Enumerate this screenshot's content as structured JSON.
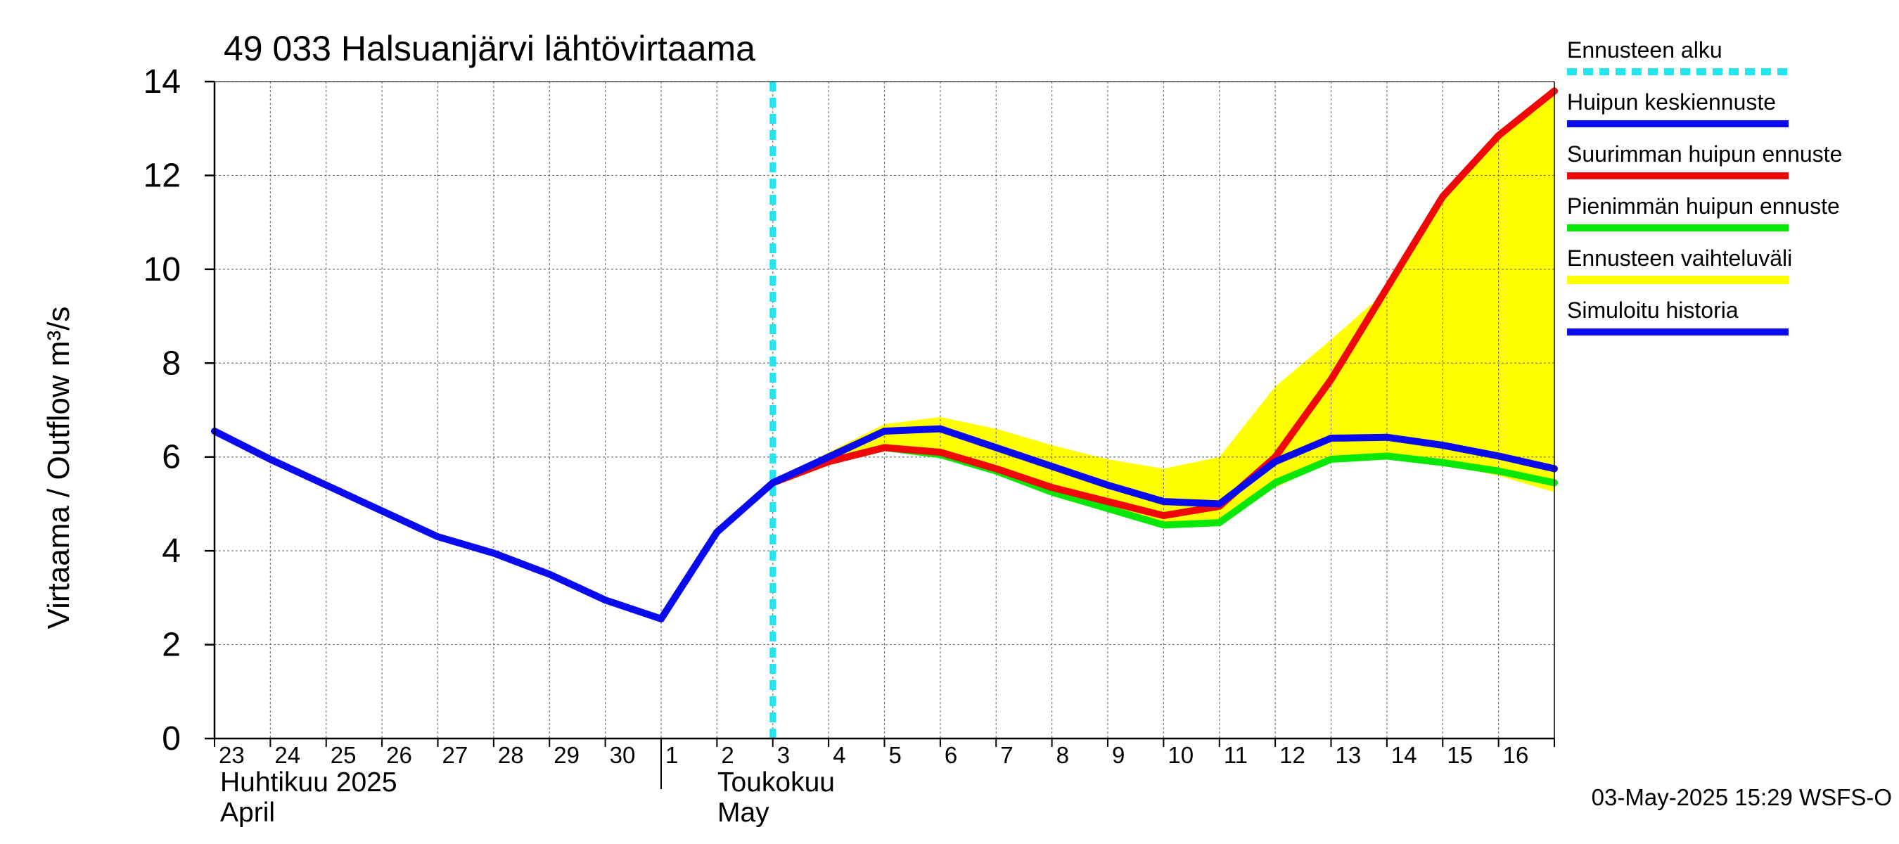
{
  "chart_data": {
    "type": "line",
    "title": "49 033 Halsuanjärvi lähtövirtaama",
    "ylabel": "Virtaama / Outflow    m³/s",
    "ylim": [
      0,
      14
    ],
    "y_ticks": [
      0,
      2,
      4,
      6,
      8,
      10,
      12,
      14
    ],
    "x_domain": [
      "2025-04-23",
      "2025-05-17"
    ],
    "x_tick_labels": [
      "23",
      "24",
      "25",
      "26",
      "27",
      "28",
      "29",
      "30",
      "1",
      "2",
      "3",
      "4",
      "5",
      "6",
      "7",
      "8",
      "9",
      "10",
      "11",
      "12",
      "13",
      "14",
      "15",
      "16"
    ],
    "month_labels": [
      {
        "fi": "Huhtikuu  2025",
        "en": "April"
      },
      {
        "fi": "Toukokuu",
        "en": "May"
      }
    ],
    "forecast_start": "2025-05-03",
    "grid": true,
    "legend_position": "right",
    "legend": [
      {
        "label": "Ennusteen alku",
        "color": "#22e5ee",
        "style": "dashed"
      },
      {
        "label": "Huipun keskiennuste",
        "color": "#0a0aee",
        "style": "solid"
      },
      {
        "label": "Suurimman huipun ennuste",
        "color": "#f00808",
        "style": "solid"
      },
      {
        "label": "Pienimmän huipun ennuste",
        "color": "#08e808",
        "style": "solid"
      },
      {
        "label": "Ennusteen vaihteluväli",
        "color": "#ffff00",
        "style": "band"
      },
      {
        "label": "Simuloitu historia",
        "color": "#0a0aee",
        "style": "solid"
      }
    ],
    "series": [
      {
        "name": "Ennusteen vaihteluväli",
        "kind": "band",
        "color": "#ffff00",
        "x": [
          "2025-05-03",
          "2025-05-04",
          "2025-05-05",
          "2025-05-06",
          "2025-05-07",
          "2025-05-08",
          "2025-05-09",
          "2025-05-10",
          "2025-05-11",
          "2025-05-12",
          "2025-05-13",
          "2025-05-14",
          "2025-05-15",
          "2025-05-16",
          "2025-05-17"
        ],
        "upper": [
          5.45,
          6.1,
          6.7,
          6.85,
          6.6,
          6.25,
          5.95,
          5.75,
          6.0,
          7.5,
          8.5,
          9.55,
          11.6,
          12.9,
          13.8
        ],
        "lower": [
          5.45,
          5.85,
          6.15,
          6.05,
          5.7,
          5.2,
          4.85,
          4.5,
          4.55,
          5.35,
          5.9,
          5.95,
          5.85,
          5.6,
          5.25
        ]
      },
      {
        "name": "Pienimmän huipun ennuste",
        "color": "#08e808",
        "x": [
          "2025-05-03",
          "2025-05-04",
          "2025-05-05",
          "2025-05-06",
          "2025-05-07",
          "2025-05-08",
          "2025-05-09",
          "2025-05-10",
          "2025-05-11",
          "2025-05-12",
          "2025-05-13",
          "2025-05-14",
          "2025-05-15",
          "2025-05-16",
          "2025-05-17"
        ],
        "values": [
          5.45,
          5.9,
          6.2,
          6.05,
          5.7,
          5.25,
          4.9,
          4.55,
          4.6,
          5.45,
          5.95,
          6.02,
          5.88,
          5.7,
          5.45
        ]
      },
      {
        "name": "Suurimman huipun ennuste",
        "color": "#f00808",
        "x": [
          "2025-05-03",
          "2025-05-04",
          "2025-05-05",
          "2025-05-06",
          "2025-05-07",
          "2025-05-08",
          "2025-05-09",
          "2025-05-10",
          "2025-05-11",
          "2025-05-12",
          "2025-05-13",
          "2025-05-14",
          "2025-05-15",
          "2025-05-16",
          "2025-05-17"
        ],
        "values": [
          5.45,
          5.9,
          6.2,
          6.1,
          5.75,
          5.35,
          5.05,
          4.75,
          4.95,
          6.0,
          7.65,
          9.6,
          11.55,
          12.85,
          13.8
        ]
      },
      {
        "name": "Huipun keskiennuste",
        "color": "#0a0aee",
        "x": [
          "2025-05-03",
          "2025-05-04",
          "2025-05-05",
          "2025-05-06",
          "2025-05-07",
          "2025-05-08",
          "2025-05-09",
          "2025-05-10",
          "2025-05-11",
          "2025-05-12",
          "2025-05-13",
          "2025-05-14",
          "2025-05-15",
          "2025-05-16",
          "2025-05-17"
        ],
        "values": [
          5.45,
          6.0,
          6.55,
          6.6,
          6.2,
          5.8,
          5.4,
          5.05,
          5.0,
          5.9,
          6.4,
          6.42,
          6.25,
          6.02,
          5.75
        ]
      },
      {
        "name": "Simuloitu historia",
        "color": "#0a0aee",
        "x": [
          "2025-04-23",
          "2025-04-24",
          "2025-04-25",
          "2025-04-26",
          "2025-04-27",
          "2025-04-28",
          "2025-04-29",
          "2025-04-30",
          "2025-05-01",
          "2025-05-02",
          "2025-05-03"
        ],
        "values": [
          6.55,
          5.95,
          5.4,
          4.85,
          4.3,
          3.95,
          3.5,
          2.95,
          2.55,
          4.4,
          5.45
        ]
      }
    ],
    "footer": "03-May-2025 15:29 WSFS-O"
  }
}
